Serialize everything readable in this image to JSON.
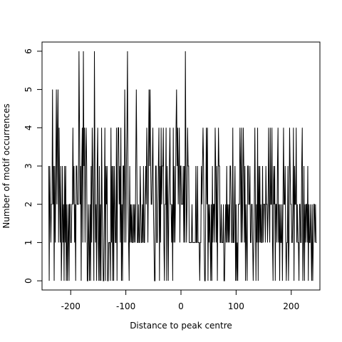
{
  "chart_data": {
    "type": "line",
    "title": "",
    "xlabel": "Distance to peak centre",
    "ylabel": "Number of motif occurrences",
    "xlim": [
      -252,
      252
    ],
    "ylim": [
      -0.24,
      6.24
    ],
    "x_ticks": [
      -200,
      -100,
      0,
      100,
      200
    ],
    "y_ticks": [
      0,
      1,
      2,
      3,
      4,
      5,
      6
    ],
    "x_tick_labels": [
      "-200",
      "-100",
      "0",
      "100",
      "200"
    ],
    "y_tick_labels": [
      "0",
      "1",
      "2",
      "3",
      "4",
      "5",
      "6"
    ],
    "grid": false,
    "legend": "none",
    "x_start": -240,
    "x_step": 1,
    "y": [
      3,
      0,
      3,
      2,
      1,
      2,
      2,
      5,
      2,
      3,
      0,
      3,
      1,
      3,
      5,
      2,
      4,
      5,
      1,
      4,
      2,
      1,
      3,
      0,
      1,
      3,
      1,
      2,
      0,
      3,
      1,
      3,
      0,
      2,
      0,
      1,
      2,
      0,
      2,
      2,
      1,
      1,
      2,
      2,
      4,
      2,
      3,
      1,
      2,
      0,
      3,
      3,
      2,
      2,
      2,
      6,
      4,
      2,
      3,
      0,
      3,
      4,
      1,
      6,
      3,
      4,
      1,
      3,
      4,
      3,
      0,
      0,
      2,
      1,
      0,
      2,
      0,
      3,
      1,
      4,
      3,
      2,
      0,
      6,
      3,
      1,
      2,
      0,
      3,
      4,
      1,
      0,
      3,
      0,
      2,
      0,
      4,
      2,
      1,
      0,
      0,
      2,
      4,
      0,
      3,
      2,
      3,
      0,
      0,
      1,
      1,
      1,
      0,
      4,
      1,
      3,
      0,
      3,
      0,
      3,
      2,
      1,
      1,
      4,
      0,
      3,
      4,
      4,
      2,
      3,
      1,
      4,
      0,
      2,
      0,
      3,
      3,
      1,
      5,
      3,
      1,
      3,
      4,
      6,
      2,
      1,
      0,
      3,
      1,
      2,
      1,
      2,
      1,
      1,
      2,
      1,
      2,
      1,
      3,
      5,
      3,
      1,
      1,
      2,
      1,
      1,
      3,
      2,
      1,
      1,
      2,
      1,
      3,
      1,
      1,
      2,
      3,
      2,
      4,
      3,
      1,
      3,
      5,
      3,
      5,
      3,
      2,
      2,
      3,
      4,
      2,
      1,
      0,
      0,
      3,
      3,
      1,
      1,
      2,
      3,
      4,
      0,
      3,
      1,
      4,
      2,
      3,
      3,
      4,
      1,
      0,
      2,
      2,
      4,
      0,
      3,
      2,
      0,
      2,
      3,
      4,
      2,
      2,
      1,
      2,
      0,
      4,
      1,
      3,
      1,
      2,
      4,
      5,
      3,
      4,
      2,
      3,
      4,
      1,
      3,
      3,
      2,
      2,
      2,
      3,
      1,
      3,
      1,
      6,
      3,
      1,
      2,
      4,
      3,
      3,
      1,
      1,
      1,
      1,
      1,
      2,
      1,
      1,
      1,
      1,
      1,
      1,
      3,
      1,
      1,
      3,
      1,
      1,
      1,
      0,
      1,
      1,
      3,
      2,
      3,
      4,
      3,
      1,
      0,
      0,
      2,
      4,
      2,
      4,
      0,
      2,
      1,
      2,
      1,
      0,
      2,
      0,
      3,
      1,
      2,
      2,
      1,
      4,
      3,
      1,
      3,
      0,
      2,
      4,
      3,
      3,
      1,
      1,
      2,
      1,
      1,
      1,
      2,
      0,
      0,
      1,
      2,
      1,
      3,
      1,
      2,
      1,
      2,
      1,
      3,
      3,
      2,
      1,
      1,
      4,
      1,
      1,
      2,
      3,
      0,
      2,
      0,
      1,
      0,
      2,
      2,
      2,
      4,
      3,
      1,
      4,
      1,
      2,
      4,
      3,
      1,
      3,
      0,
      2,
      1,
      0,
      3,
      3,
      2,
      2,
      3,
      1,
      1,
      2,
      2,
      1,
      0,
      1,
      2,
      4,
      2,
      0,
      2,
      1,
      4,
      0,
      3,
      1,
      3,
      1,
      2,
      1,
      1,
      3,
      1,
      2,
      2,
      2,
      1,
      3,
      2,
      2,
      1,
      2,
      4,
      2,
      1,
      4,
      2,
      2,
      4,
      1,
      0,
      3,
      2,
      3,
      0,
      2,
      2,
      1,
      3,
      4,
      1,
      2,
      0,
      2,
      1,
      1,
      2,
      0,
      2,
      4,
      2,
      2,
      3,
      1,
      0,
      1,
      1,
      3,
      0,
      1,
      4,
      3,
      2,
      2,
      1,
      1,
      2,
      4,
      0,
      3,
      2,
      2,
      4,
      1,
      2,
      1,
      1,
      0,
      2,
      2,
      1,
      1,
      3,
      4,
      0,
      1,
      3,
      0,
      2,
      1,
      2,
      2,
      1,
      3,
      0,
      2,
      1,
      1,
      2,
      1,
      0,
      2,
      0,
      1,
      2,
      2,
      1,
      2,
      1,
      1
    ]
  }
}
